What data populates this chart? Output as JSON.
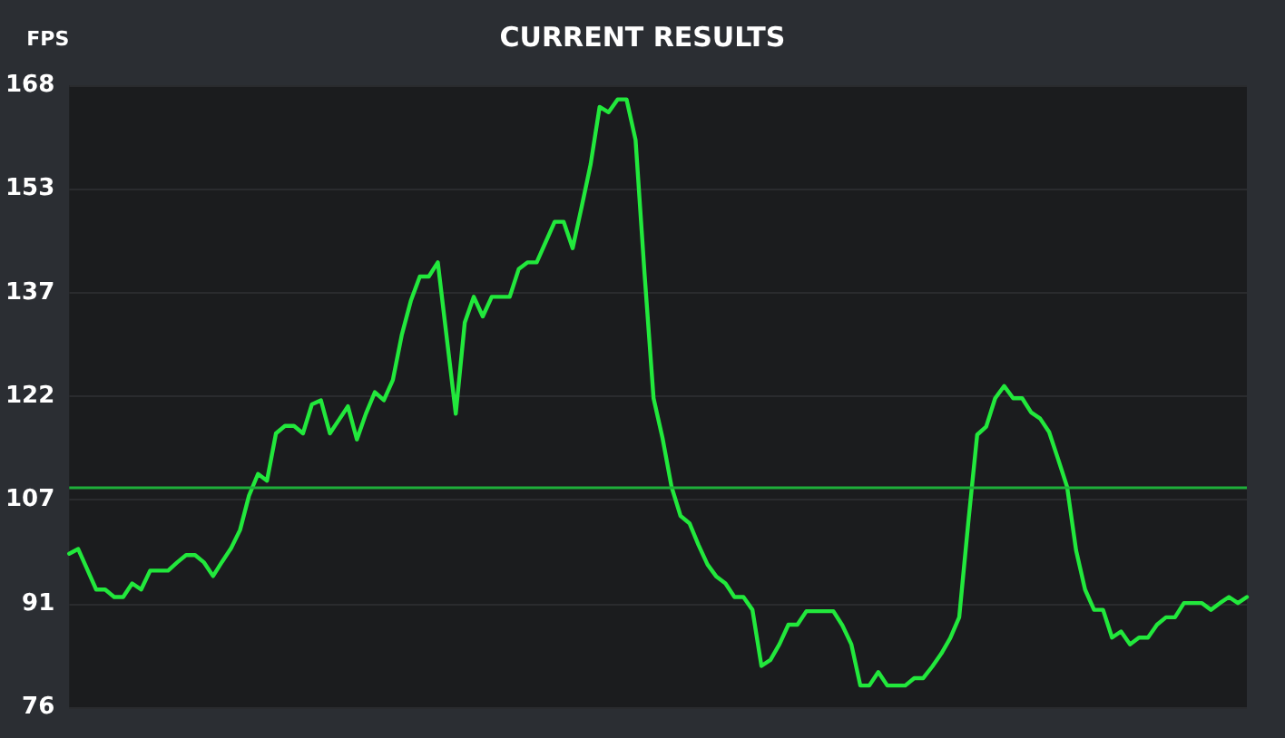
{
  "chart_data": {
    "type": "line",
    "title": "CURRENT RESULTS",
    "ylabel": "FPS",
    "categories": [
      null,
      null,
      null,
      null,
      null,
      null,
      null,
      null,
      null,
      null,
      null,
      null,
      null,
      null,
      null,
      null,
      null,
      null,
      null,
      null,
      null,
      null,
      null,
      null,
      null,
      null,
      null,
      null,
      null,
      null,
      null,
      null,
      null,
      null,
      null,
      null,
      null,
      null,
      null,
      null,
      null,
      null,
      null,
      null,
      null,
      null,
      null,
      null,
      null,
      null,
      null,
      null,
      null,
      null,
      null,
      null,
      null,
      null,
      null,
      null,
      null,
      null,
      null,
      null,
      null,
      null,
      null,
      null,
      null,
      null,
      null,
      null,
      null,
      null,
      null,
      null,
      null,
      null,
      null,
      null,
      null,
      null,
      null,
      null,
      null,
      null,
      null,
      null,
      null,
      null,
      null,
      null,
      null,
      null,
      null,
      null,
      null,
      null,
      null,
      null,
      null,
      null,
      null,
      null,
      null,
      null,
      null,
      null,
      null,
      null,
      null,
      null,
      null,
      null,
      null,
      null,
      null,
      null,
      null,
      null,
      null,
      null,
      null,
      null,
      null,
      null,
      null,
      null,
      null,
      null,
      null,
      null
    ],
    "series": [
      {
        "color": "#22e83c",
        "values": [
          98.7,
          99.4,
          96.4,
          93.4,
          93.4,
          92.3,
          92.3,
          94.3,
          93.4,
          96.2,
          96.2,
          96.2,
          97.4,
          98.5,
          98.5,
          97.4,
          95.4,
          97.5,
          99.5,
          102.2,
          107.3,
          110.5,
          109.5,
          116.5,
          117.6,
          117.6,
          116.5,
          120.8,
          121.4,
          116.5,
          118.5,
          120.5,
          115.6,
          119.4,
          122.6,
          121.4,
          124.4,
          131.1,
          136.1,
          139.7,
          139.7,
          141.8,
          130.6,
          119.4,
          132.9,
          136.7,
          133.8,
          136.7,
          136.7,
          136.7,
          140.8,
          141.8,
          141.8,
          144.8,
          147.8,
          147.8,
          143.9,
          150,
          156.3,
          164.8,
          164,
          165.9,
          165.9,
          159.9,
          140.1,
          121.7,
          115.8,
          108.6,
          104.3,
          103.2,
          100,
          97.1,
          95.3,
          94.3,
          92.3,
          92.3,
          90.4,
          82.1,
          83,
          85.3,
          88.2,
          88.2,
          90.2,
          90.2,
          90.2,
          90.2,
          88.1,
          85.3,
          79.2,
          79.2,
          81.2,
          79.2,
          79.2,
          79.2,
          80.3,
          80.3,
          82,
          83.9,
          86.2,
          89.3,
          103.2,
          116.3,
          117.5,
          121.7,
          123.5,
          121.7,
          121.7,
          119.6,
          118.7,
          116.7,
          112.7,
          108.6,
          99.2,
          93.4,
          90.4,
          90.4,
          86.3,
          87.2,
          85.3,
          86.3,
          86.3,
          88.2,
          89.3,
          89.3,
          91.4,
          91.4,
          91.4,
          90.4,
          91.4,
          92.3,
          91.4,
          92.3
        ]
      }
    ],
    "ylim": [
      76,
      168
    ],
    "yticks": [
      {
        "value": 76,
        "label": "76"
      },
      {
        "value": 91.33,
        "label": "91"
      },
      {
        "value": 106.67,
        "label": "107"
      },
      {
        "value": 122,
        "label": "122"
      },
      {
        "value": 137.33,
        "label": "137"
      },
      {
        "value": 152.67,
        "label": "153"
      },
      {
        "value": 168,
        "label": "168"
      }
    ],
    "ref_lines": [
      {
        "axis": "y",
        "value": 108.4,
        "color": "#1fae3a",
        "line_style": "solid"
      }
    ],
    "grid": "y",
    "marker": "none",
    "line_style": "solid"
  }
}
